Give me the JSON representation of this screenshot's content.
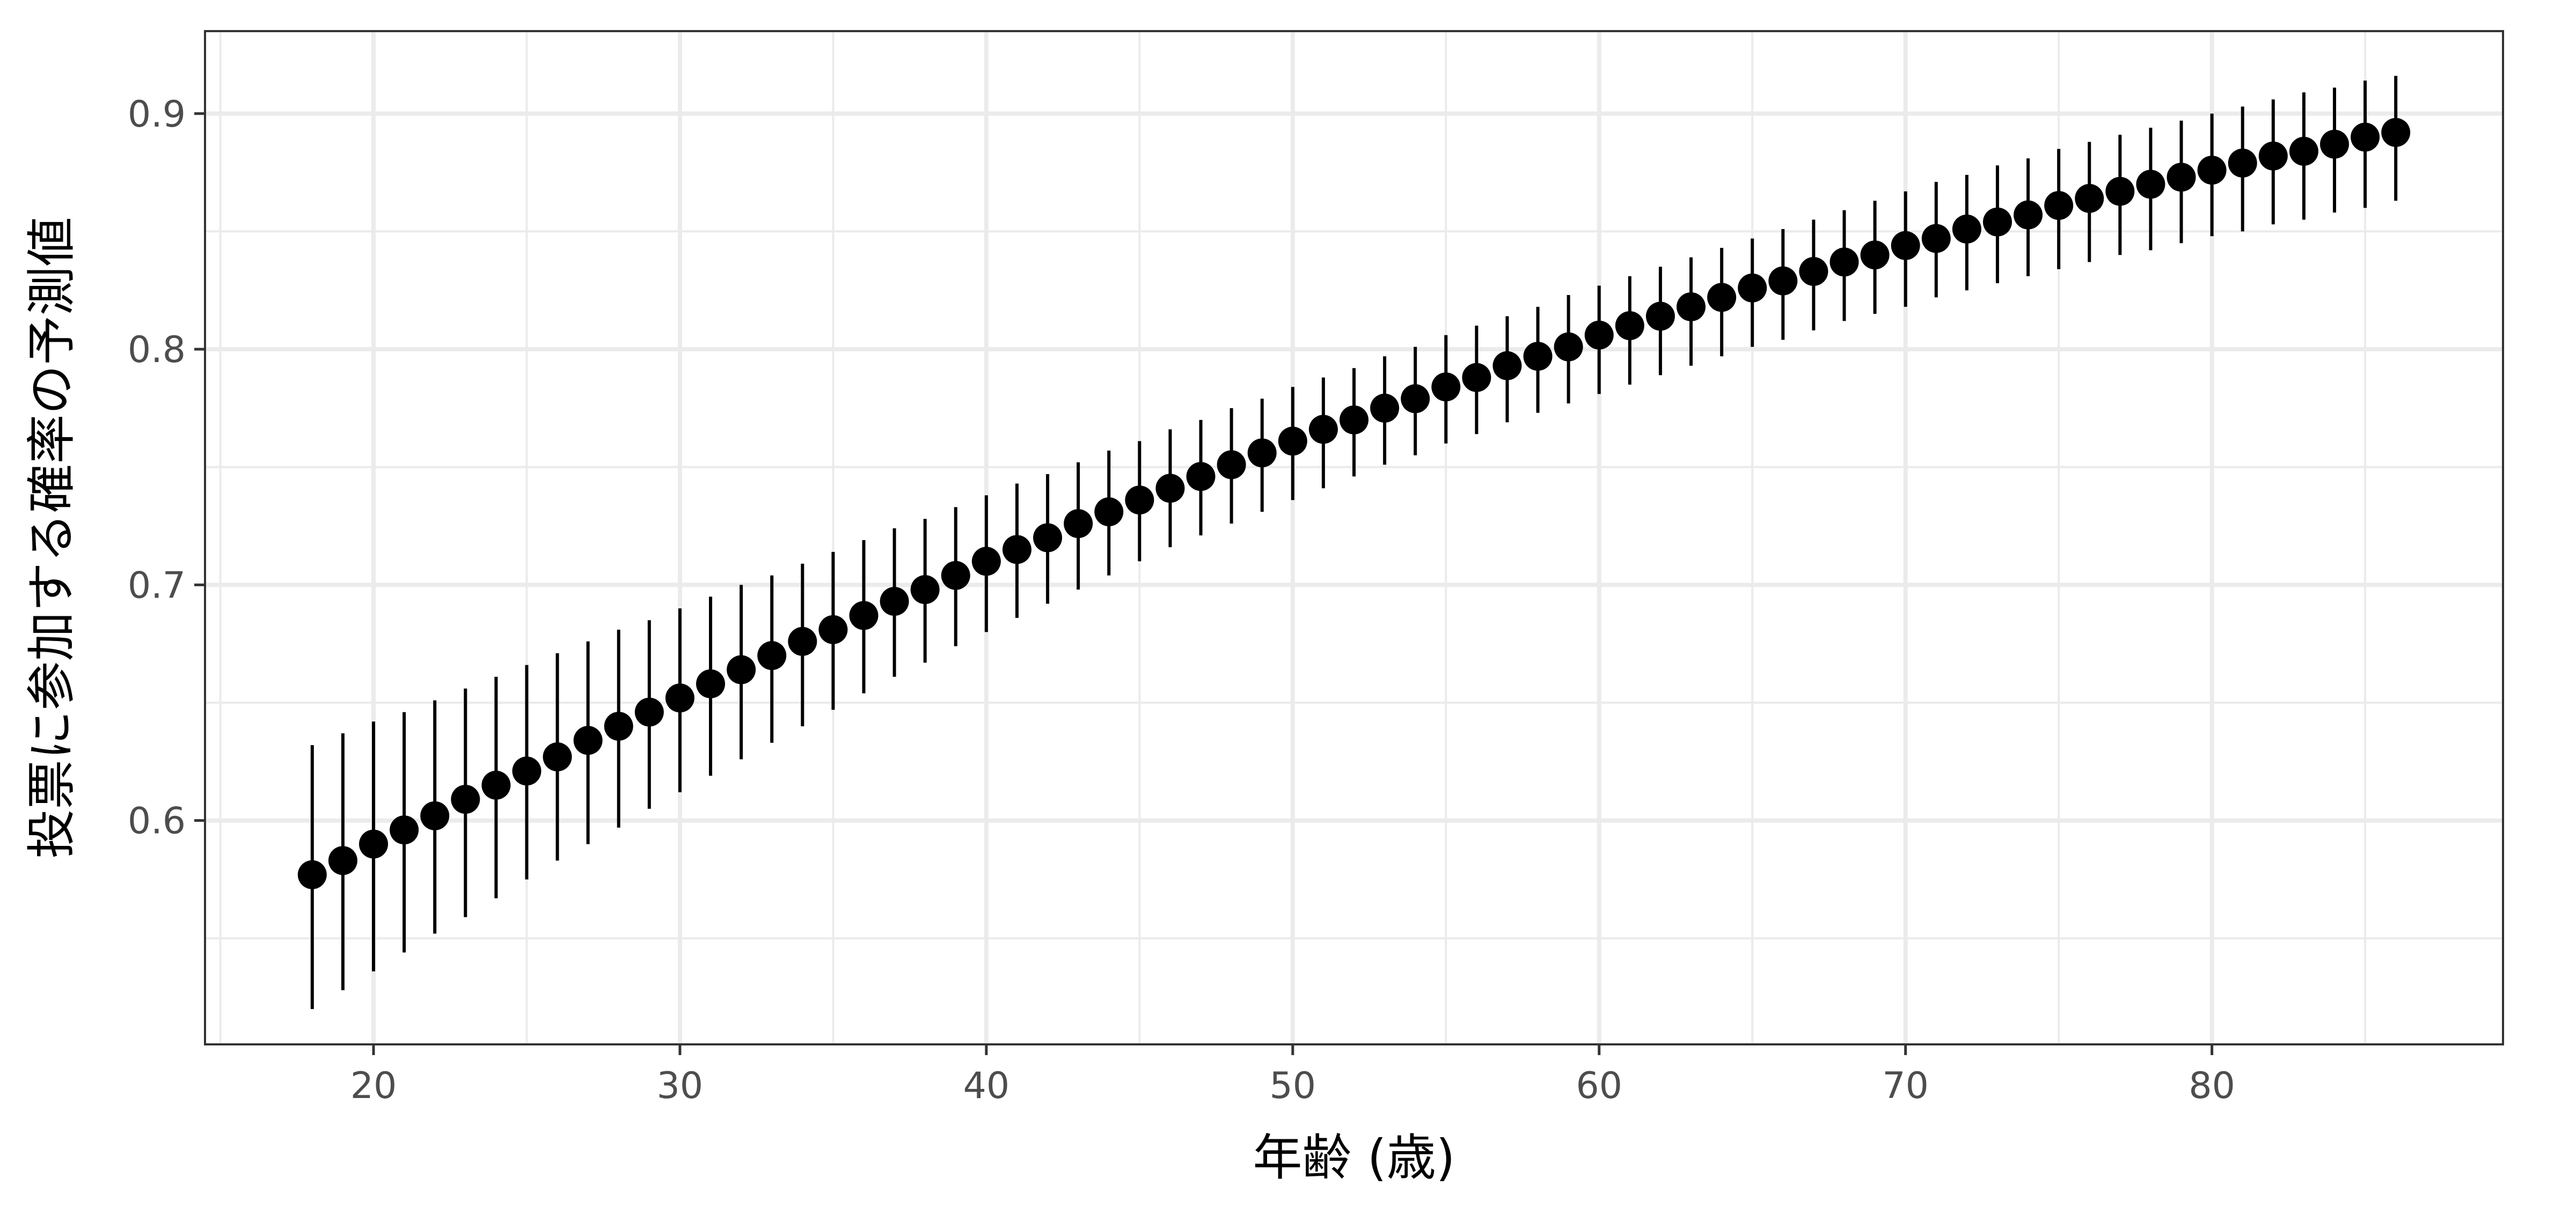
{
  "chart_data": {
    "type": "scatter",
    "title": "",
    "xlabel": "年齢 (歳)",
    "ylabel": "投票に参加する確率の予測値",
    "xlim": [
      14.5,
      89.5
    ],
    "ylim": [
      0.505,
      0.935
    ],
    "x_ticks": [
      20,
      30,
      40,
      50,
      60,
      70,
      80
    ],
    "x_tick_labels": [
      "20",
      "30",
      "40",
      "50",
      "60",
      "70",
      "80"
    ],
    "y_ticks": [
      0.6,
      0.7,
      0.8,
      0.9
    ],
    "y_tick_labels": [
      "0.6",
      "0.7",
      "0.8",
      "0.9"
    ],
    "x_minor_ticks": [
      15,
      25,
      35,
      45,
      55,
      65,
      75,
      85
    ],
    "y_minor_ticks": [
      0.55,
      0.65,
      0.75,
      0.85
    ],
    "grid": true,
    "legend": "none",
    "colors": {
      "point": "#000000",
      "errorbar": "#000000",
      "grid": "#ebebeb",
      "panel_border": "#333333",
      "background": "#ffffff"
    },
    "series": [
      {
        "x": [
          18,
          19,
          20,
          21,
          22,
          23,
          24,
          25,
          26,
          27,
          28,
          29,
          30,
          31,
          32,
          33,
          34,
          35,
          36,
          37,
          38,
          39,
          40,
          41,
          42,
          43,
          44,
          45,
          46,
          47,
          48,
          49,
          50,
          51,
          52,
          53,
          54,
          55,
          56,
          57,
          58,
          59,
          60,
          61,
          62,
          63,
          64,
          65,
          66,
          67,
          68,
          69,
          70,
          71,
          72,
          73,
          74,
          75,
          76,
          77,
          78,
          79,
          80,
          81,
          82,
          83,
          84,
          85,
          86
        ],
        "y": [
          0.577,
          0.583,
          0.59,
          0.596,
          0.602,
          0.609,
          0.615,
          0.621,
          0.627,
          0.634,
          0.64,
          0.646,
          0.652,
          0.658,
          0.664,
          0.67,
          0.676,
          0.681,
          0.687,
          0.693,
          0.698,
          0.704,
          0.71,
          0.715,
          0.72,
          0.726,
          0.731,
          0.736,
          0.741,
          0.746,
          0.751,
          0.756,
          0.761,
          0.766,
          0.77,
          0.775,
          0.779,
          0.784,
          0.788,
          0.793,
          0.797,
          0.801,
          0.806,
          0.81,
          0.814,
          0.818,
          0.822,
          0.826,
          0.829,
          0.833,
          0.837,
          0.84,
          0.844,
          0.847,
          0.851,
          0.854,
          0.857,
          0.861,
          0.864,
          0.867,
          0.87,
          0.873,
          0.876,
          0.879,
          0.882,
          0.884,
          0.887,
          0.89,
          0.892
        ],
        "ymin": [
          0.52,
          0.528,
          0.536,
          0.544,
          0.552,
          0.559,
          0.567,
          0.575,
          0.583,
          0.59,
          0.597,
          0.605,
          0.612,
          0.619,
          0.626,
          0.633,
          0.64,
          0.647,
          0.654,
          0.661,
          0.667,
          0.674,
          0.68,
          0.686,
          0.692,
          0.698,
          0.704,
          0.71,
          0.716,
          0.721,
          0.726,
          0.731,
          0.736,
          0.741,
          0.746,
          0.751,
          0.755,
          0.76,
          0.764,
          0.769,
          0.773,
          0.777,
          0.781,
          0.785,
          0.789,
          0.793,
          0.797,
          0.801,
          0.804,
          0.808,
          0.812,
          0.815,
          0.818,
          0.822,
          0.825,
          0.828,
          0.831,
          0.834,
          0.837,
          0.84,
          0.842,
          0.845,
          0.848,
          0.85,
          0.853,
          0.855,
          0.858,
          0.86,
          0.863
        ],
        "ymax": [
          0.632,
          0.637,
          0.642,
          0.646,
          0.651,
          0.656,
          0.661,
          0.666,
          0.671,
          0.676,
          0.681,
          0.685,
          0.69,
          0.695,
          0.7,
          0.704,
          0.709,
          0.714,
          0.719,
          0.724,
          0.728,
          0.733,
          0.738,
          0.743,
          0.747,
          0.752,
          0.757,
          0.761,
          0.766,
          0.77,
          0.775,
          0.779,
          0.784,
          0.788,
          0.792,
          0.797,
          0.801,
          0.806,
          0.81,
          0.814,
          0.818,
          0.823,
          0.827,
          0.831,
          0.835,
          0.839,
          0.843,
          0.847,
          0.851,
          0.855,
          0.859,
          0.863,
          0.867,
          0.871,
          0.874,
          0.878,
          0.881,
          0.885,
          0.888,
          0.891,
          0.894,
          0.897,
          0.9,
          0.903,
          0.906,
          0.909,
          0.911,
          0.914,
          0.916
        ]
      }
    ]
  }
}
